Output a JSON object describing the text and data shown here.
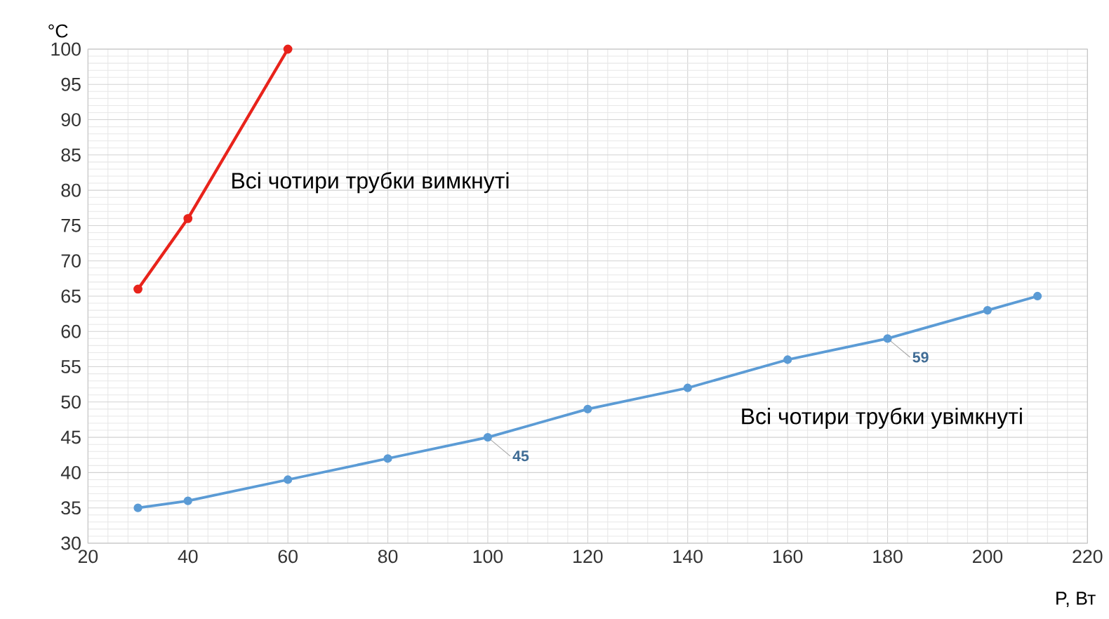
{
  "chart_data": {
    "type": "line",
    "xlabel": "P, Вт",
    "ylabel": "°C",
    "xlim": [
      20,
      220
    ],
    "xticks": [
      20,
      40,
      60,
      80,
      100,
      120,
      140,
      160,
      180,
      200,
      220
    ],
    "ylim": [
      30,
      100
    ],
    "yticks": [
      30,
      35,
      40,
      45,
      50,
      55,
      60,
      65,
      70,
      75,
      80,
      85,
      90,
      95,
      100
    ],
    "grid": true,
    "marker": "circle",
    "line_style": "solid",
    "series": [
      {
        "name": "Всі чотири трубки вимкнуті",
        "color": "#e8231b",
        "x": [
          30,
          40,
          60
        ],
        "values": [
          66,
          76,
          100
        ]
      },
      {
        "name": "Всі чотири трубки увімкнуті",
        "color": "#5b9bd5",
        "x": [
          30,
          40,
          60,
          80,
          100,
          120,
          140,
          160,
          180,
          200,
          210
        ],
        "values": [
          35,
          36,
          39,
          42,
          45,
          49,
          52,
          56,
          59,
          63,
          65
        ]
      }
    ],
    "annotations": [
      {
        "text": "45",
        "x": 100,
        "y": 45
      },
      {
        "text": "59",
        "x": 180,
        "y": 59
      }
    ]
  }
}
